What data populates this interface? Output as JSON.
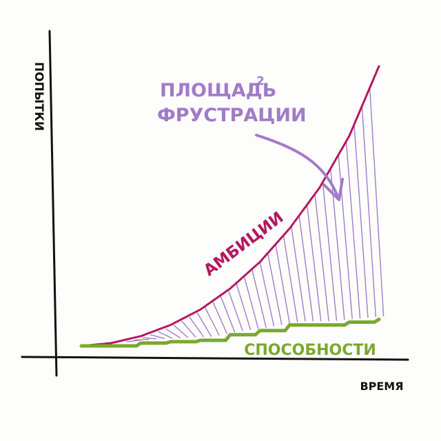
{
  "chart_data": {
    "type": "line",
    "xlabel": "ВРЕМЯ",
    "ylabel": "ПОПЫТКИ",
    "x": [
      0,
      1,
      2,
      3,
      4,
      5,
      6,
      7,
      8,
      9,
      10
    ],
    "xlim": [
      0,
      10
    ],
    "ylim": [
      0,
      10
    ],
    "grid": false,
    "legend": "none",
    "series": [
      {
        "name": "АМБИЦИИ",
        "color": "#b5185f",
        "values": [
          0.0,
          0.1,
          0.35,
          0.75,
          1.3,
          2.05,
          3.0,
          4.2,
          5.65,
          7.5,
          10.0
        ]
      },
      {
        "name": "СПОСОБНОСТИ",
        "color": "#7ba82e",
        "values": [
          0.0,
          0.0,
          0.1,
          0.15,
          0.2,
          0.4,
          0.55,
          0.75,
          0.75,
          0.85,
          0.95
        ]
      }
    ],
    "annotations": [
      {
        "text_line1": "ПЛОЩАДЬ",
        "superscript": "2",
        "text_line2": "ФРУСТРАЦИИ",
        "color": "#a17ac9"
      }
    ],
    "area_fill": "hatched area between series"
  }
}
